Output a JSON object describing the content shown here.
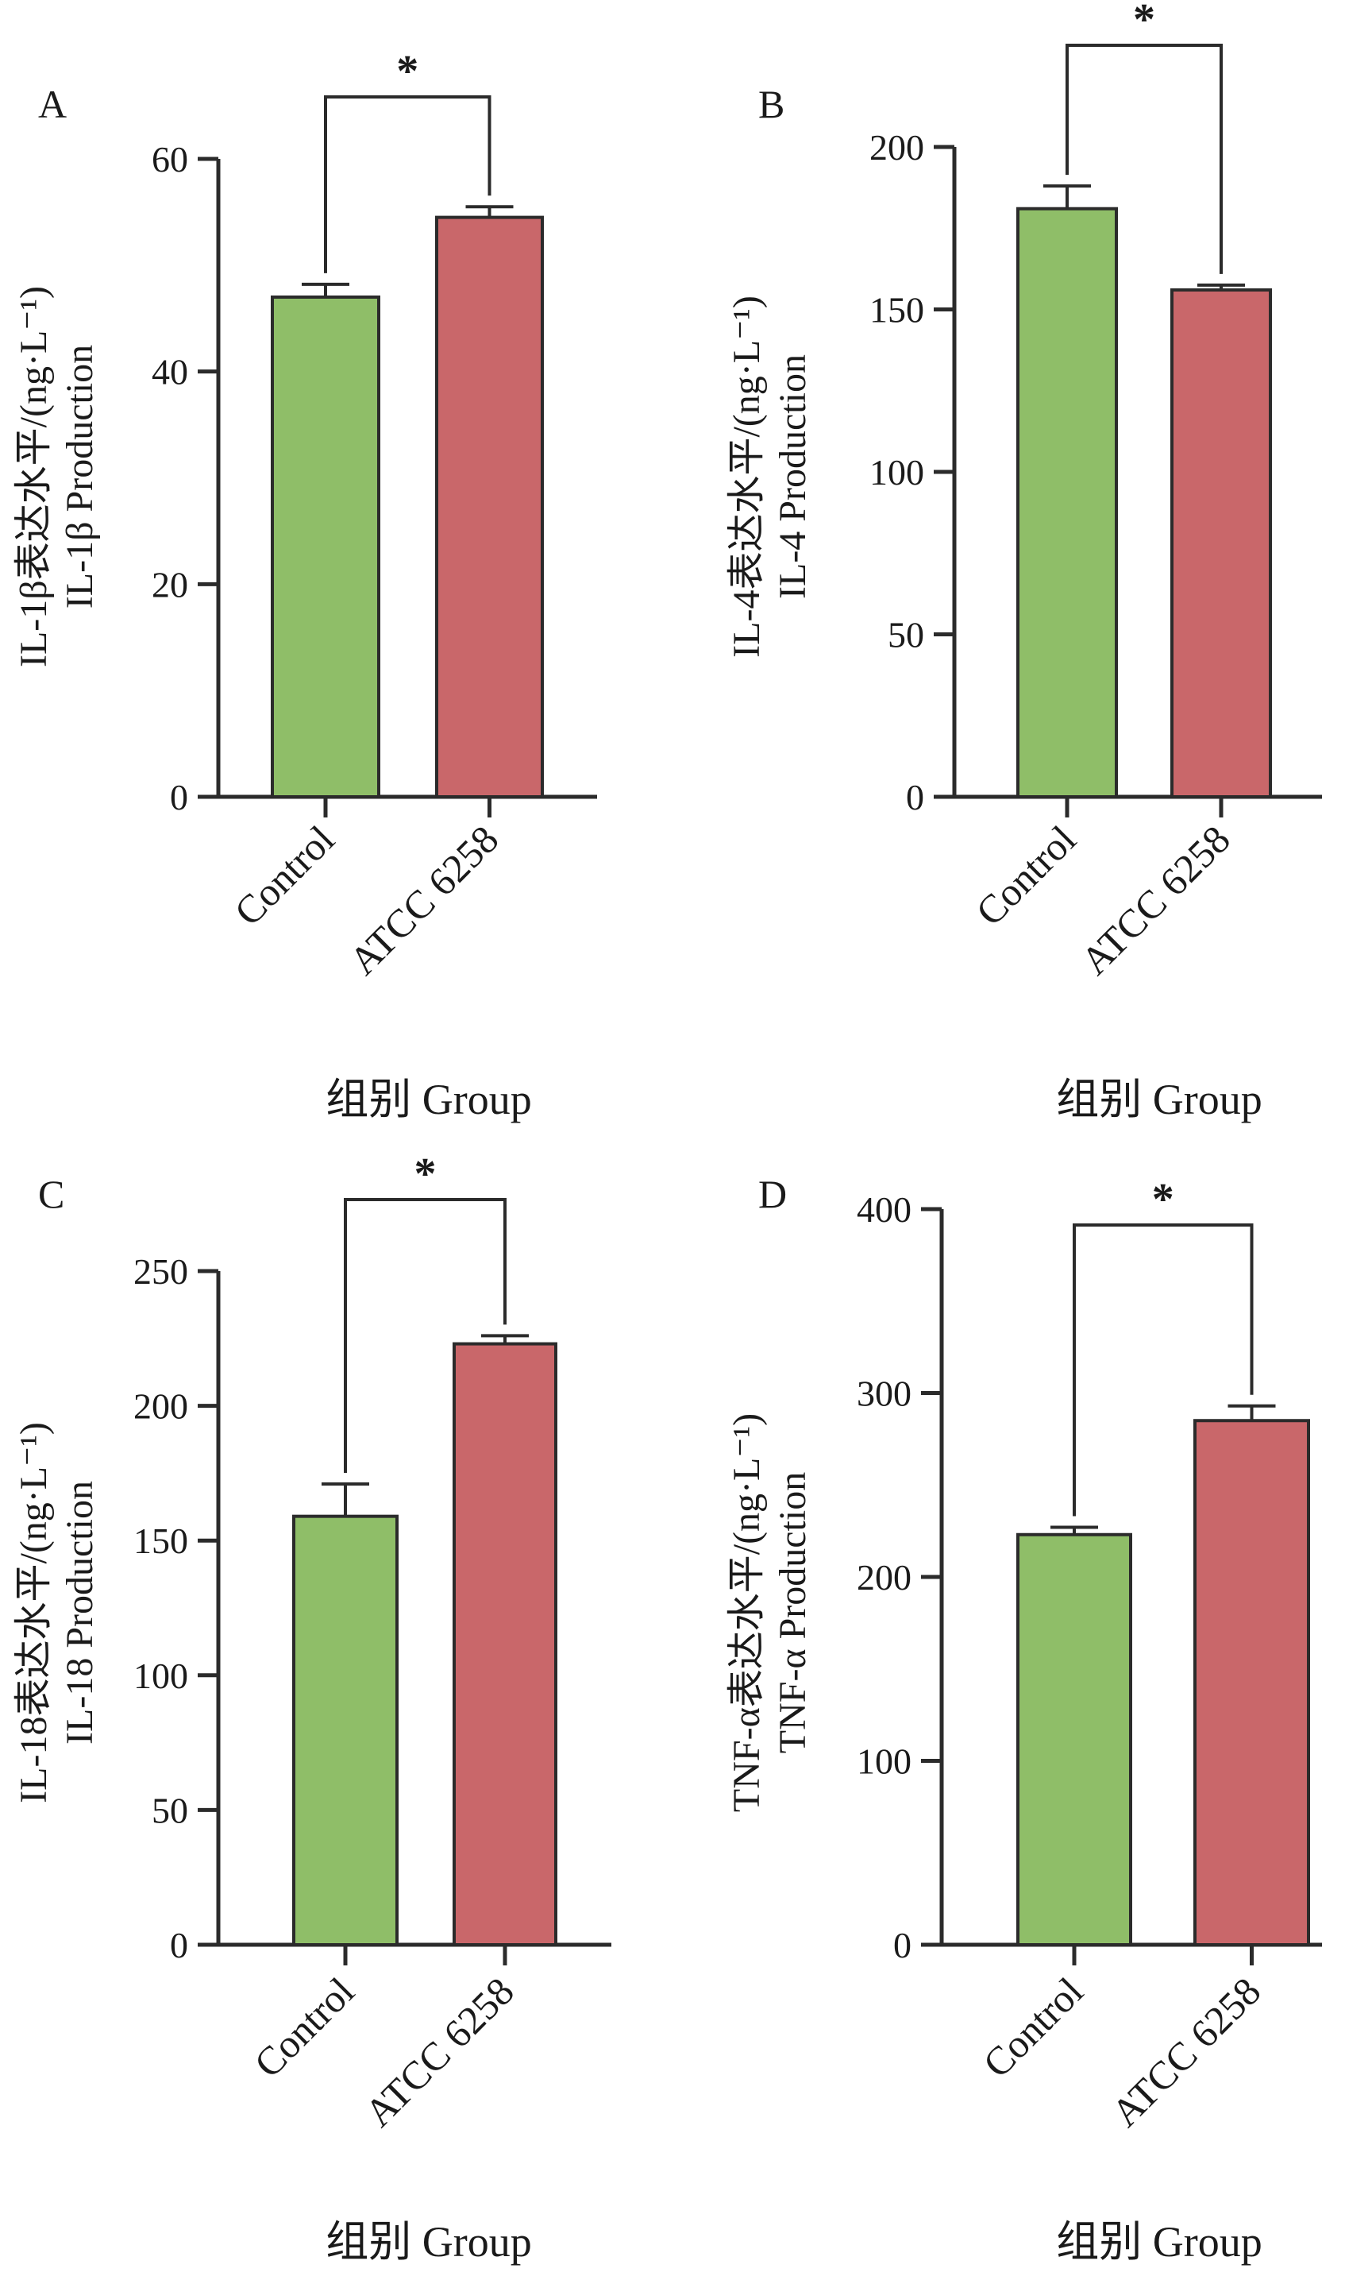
{
  "figure": {
    "colors": {
      "control": "#8fbe68",
      "treatment": "#c9676a",
      "stroke": "#2b2b2b",
      "axis": "#2b2b2b"
    }
  },
  "chart_data": [
    {
      "type": "bar",
      "panel": "A",
      "title": "",
      "categories": [
        "Control",
        "ATCC 6258"
      ],
      "values": [
        47,
        54.5
      ],
      "errors": [
        1.2,
        1.0
      ],
      "ylabel_line1": "IL-1β表达水平/(ng·L⁻¹)",
      "ylabel_line2": "IL-1β Production",
      "xlabel": "组别 Group",
      "ylim": [
        0,
        60
      ],
      "yticks": [
        0,
        20,
        40,
        60
      ],
      "significance": "*"
    },
    {
      "type": "bar",
      "panel": "B",
      "title": "",
      "categories": [
        "Control",
        "ATCC 6258"
      ],
      "values": [
        181,
        156
      ],
      "errors": [
        7,
        1.5
      ],
      "ylabel_line1": "IL-4表达水平/(ng·L⁻¹)",
      "ylabel_line2": "IL-4 Production",
      "xlabel": "组别 Group",
      "ylim": [
        0,
        200
      ],
      "yticks": [
        0,
        50,
        100,
        150,
        200
      ],
      "significance": "*"
    },
    {
      "type": "bar",
      "panel": "C",
      "title": "",
      "categories": [
        "Control",
        "ATCC 6258"
      ],
      "values": [
        159,
        223
      ],
      "errors": [
        12,
        3
      ],
      "ylabel_line1": "IL-18表达水平/(ng·L⁻¹)",
      "ylabel_line2": "IL-18 Production",
      "xlabel": "组别 Group",
      "ylim": [
        0,
        250
      ],
      "yticks": [
        0,
        50,
        100,
        150,
        200,
        250
      ],
      "significance": "*"
    },
    {
      "type": "bar",
      "panel": "D",
      "title": "",
      "categories": [
        "Control",
        "ATCC 6258"
      ],
      "values": [
        223,
        285
      ],
      "errors": [
        4,
        8
      ],
      "ylabel_line1": "TNF-α表达水平/(ng·L⁻¹)",
      "ylabel_line2": "TNF-α Production",
      "xlabel": "组别 Group",
      "ylim": [
        0,
        400
      ],
      "yticks": [
        0,
        100,
        200,
        300,
        400
      ],
      "significance": "*"
    }
  ]
}
